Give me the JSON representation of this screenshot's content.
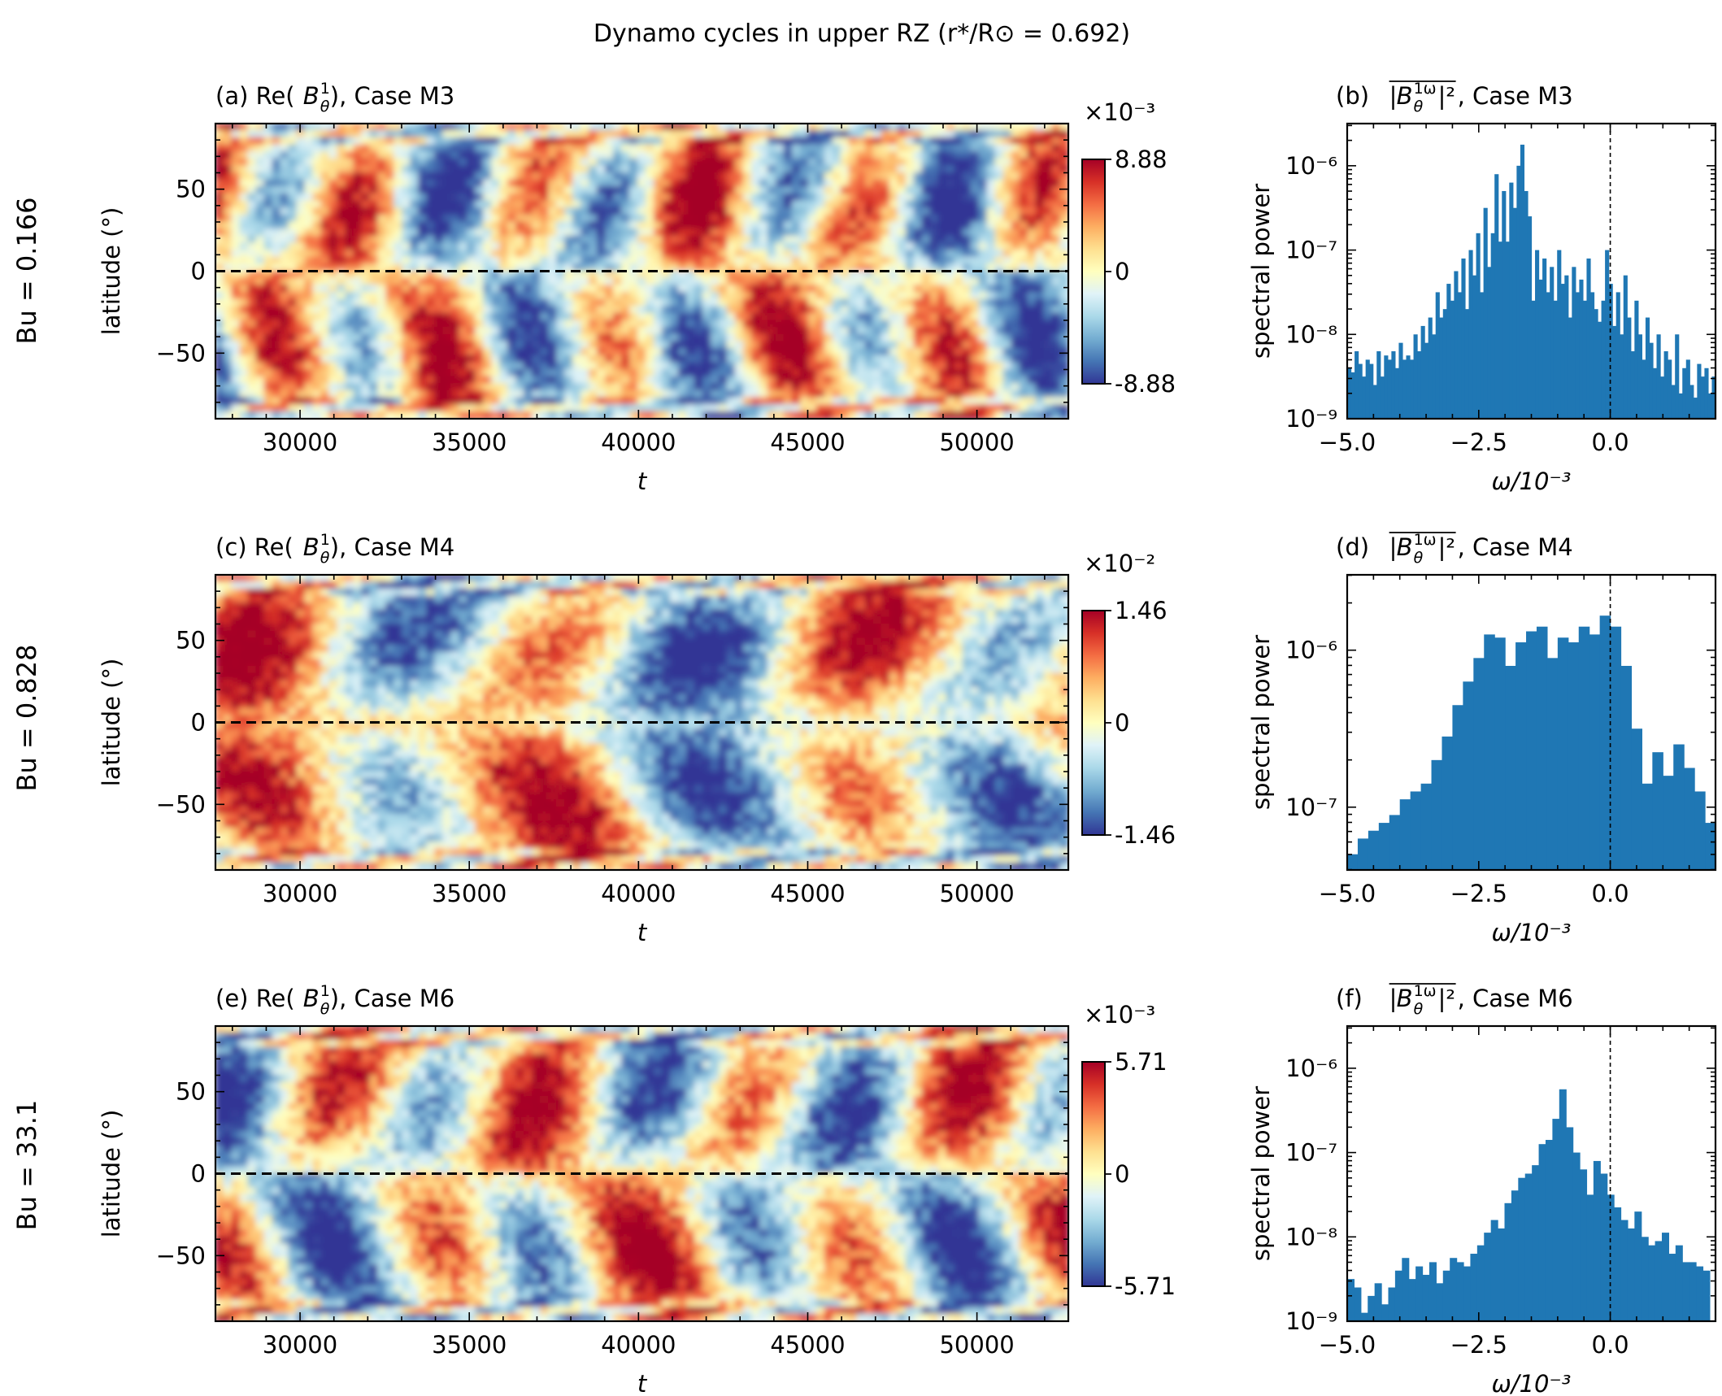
{
  "figure": {
    "title": "Dynamo cycles in upper RZ (r*/R⊙ = 0.692)"
  },
  "rows": [
    {
      "bu_label": "Bu = 0.166"
    },
    {
      "bu_label": "Bu = 0.828"
    },
    {
      "bu_label": "Bu = 33.1"
    }
  ],
  "colormap": [
    "#313695",
    "#4575b4",
    "#74add1",
    "#abd9e9",
    "#e0f3f8",
    "#ffffbf",
    "#fee090",
    "#fdae61",
    "#f46d43",
    "#d73027",
    "#a50026"
  ],
  "bar_color": "#1f77b4",
  "chart_data": [
    {
      "type": "heatmap",
      "panel": "(a) Re(B_θ^1), Case M3",
      "title_main": "(a) Re(",
      "title_case": "), Case M3",
      "xlabel": "t",
      "ylabel": "latitude (°)",
      "xlim": [
        27500,
        52700
      ],
      "ylim": [
        -90,
        90
      ],
      "xticks": [
        30000,
        35000,
        40000,
        45000,
        50000
      ],
      "yticks": [
        50,
        0,
        -50
      ],
      "ytick_labels": [
        "50",
        "0",
        "−50"
      ],
      "colorbar": {
        "exponent": "×10⁻³",
        "max": "8.88",
        "mid": "0",
        "min": "-8.88"
      },
      "cycle_period": 5000,
      "phase_shift": 0,
      "hemisphere_antisymmetric": true
    },
    {
      "type": "bar",
      "panel": "(b) |B_θ^1ω|² avg, Case M3",
      "title_main": "(b) ",
      "title_case": ", Case M3",
      "xlabel": "ω/10⁻³",
      "ylabel": "spectral power",
      "xlim": [
        -5.0,
        2.0
      ],
      "ylog_range": [
        -9,
        -5.5
      ],
      "xticks": [
        -5.0,
        -2.5,
        0.0
      ],
      "xtick_labels": [
        "−5.0",
        "−2.5",
        "0.0"
      ],
      "yticks": [
        -6,
        -7,
        -8,
        -9
      ],
      "ytick_labels": [
        "10⁻⁶",
        "10⁻⁷",
        "10⁻⁸",
        "10⁻⁹"
      ],
      "bin_width": 0.07,
      "x_start": -5.0,
      "log10_values": [
        -8.4,
        -8.45,
        -8.2,
        -8.35,
        -8.5,
        -8.3,
        -8.35,
        -8.6,
        -8.2,
        -8.5,
        -8.25,
        -8.3,
        -8.2,
        -8.4,
        -8.1,
        -8.3,
        -8.25,
        -8.3,
        -8.0,
        -8.2,
        -7.9,
        -8.1,
        -7.8,
        -8.0,
        -7.5,
        -7.8,
        -7.7,
        -7.4,
        -7.6,
        -7.25,
        -7.5,
        -7.1,
        -7.7,
        -7.0,
        -7.3,
        -6.8,
        -7.5,
        -6.5,
        -7.2,
        -6.8,
        -6.1,
        -6.9,
        -6.3,
        -6.9,
        -6.2,
        -6.5,
        -6.0,
        -5.75,
        -6.3,
        -6.6,
        -7.6,
        -7.0,
        -7.35,
        -7.1,
        -7.5,
        -7.2,
        -7.6,
        -7.0,
        -7.4,
        -7.3,
        -7.8,
        -7.2,
        -7.5,
        -7.35,
        -7.6,
        -7.1,
        -7.5,
        -7.7,
        -7.85,
        -7.6,
        -7.0,
        -7.4,
        -7.9,
        -7.5,
        -8.0,
        -7.3,
        -7.8,
        -8.2,
        -7.6,
        -8.0,
        -8.3,
        -7.8,
        -8.1,
        -8.4,
        -8.0,
        -8.5,
        -8.2,
        -8.3,
        -8.6,
        -8.0,
        -8.7,
        -8.4,
        -8.3,
        -8.6,
        -8.75,
        -8.35,
        -8.5,
        -8.4,
        -8.7,
        -8.5
      ]
    },
    {
      "type": "heatmap",
      "panel": "(c) Re(B_θ^1), Case M4",
      "title_main": "(c) Re(",
      "title_case": "), Case M4",
      "xlabel": "t",
      "ylabel": "latitude (°)",
      "xlim": [
        27500,
        52700
      ],
      "ylim": [
        -90,
        90
      ],
      "xticks": [
        30000,
        35000,
        40000,
        45000,
        50000
      ],
      "yticks": [
        50,
        0,
        -50
      ],
      "ytick_labels": [
        "50",
        "0",
        "−50"
      ],
      "colorbar": {
        "exponent": "×10⁻²",
        "max": "1.46",
        "mid": "0",
        "min": "-1.46"
      },
      "cycle_period": 9000,
      "phase_shift": 1.2,
      "hemisphere_antisymmetric": false
    },
    {
      "type": "bar",
      "panel": "(d) |B_θ^1ω|² avg, Case M4",
      "title_main": "(d) ",
      "title_case": ", Case M4",
      "xlabel": "ω/10⁻³",
      "ylabel": "spectral power",
      "xlim": [
        -5.0,
        2.0
      ],
      "ylog_range": [
        -7.4,
        -5.52
      ],
      "xticks": [
        -5.0,
        -2.5,
        0.0
      ],
      "xtick_labels": [
        "−5.0",
        "−2.5",
        "0.0"
      ],
      "yticks": [
        -6,
        -7
      ],
      "ytick_labels": [
        "10⁻⁶",
        "10⁻⁷"
      ],
      "bin_width": 0.2,
      "x_start": -5.0,
      "log10_values": [
        -7.3,
        -7.2,
        -7.15,
        -7.1,
        -7.05,
        -6.95,
        -6.9,
        -6.85,
        -6.7,
        -6.55,
        -6.35,
        -6.2,
        -6.05,
        -5.9,
        -5.92,
        -6.1,
        -5.95,
        -5.88,
        -5.85,
        -6.05,
        -5.92,
        -5.95,
        -5.85,
        -5.9,
        -5.78,
        -5.85,
        -6.1,
        -6.5,
        -6.85,
        -6.65,
        -6.8,
        -6.6,
        -6.75,
        -6.9,
        -7.1,
        -7.1,
        -7.15
      ]
    },
    {
      "type": "heatmap",
      "panel": "(e) Re(B_θ^1), Case M6",
      "title_main": "(e) Re(",
      "title_case": "), Case M6",
      "xlabel": "t",
      "ylabel": "latitude (°)",
      "xlim": [
        27500,
        52700
      ],
      "ylim": [
        -90,
        90
      ],
      "xticks": [
        30000,
        35000,
        40000,
        45000,
        50000
      ],
      "yticks": [
        50,
        0,
        -50
      ],
      "ytick_labels": [
        "50",
        "0",
        "−50"
      ],
      "colorbar": {
        "exponent": "×10⁻³",
        "max": "5.71",
        "mid": "0",
        "min": "-5.71"
      },
      "cycle_period": 6200,
      "phase_shift": 2.3,
      "hemisphere_antisymmetric": true
    },
    {
      "type": "bar",
      "panel": "(f) |B_θ^1ω|² avg, Case M6",
      "title_main": "(f) ",
      "title_case": ", Case M6",
      "xlabel": "ω/10⁻³",
      "ylabel": "spectral power",
      "xlim": [
        -5.0,
        2.0
      ],
      "ylog_range": [
        -9,
        -5.5
      ],
      "xticks": [
        -5.0,
        -2.5,
        0.0
      ],
      "xtick_labels": [
        "−5.0",
        "−2.5",
        "0.0"
      ],
      "yticks": [
        -6,
        -7,
        -8,
        -9
      ],
      "ytick_labels": [
        "10⁻⁶",
        "10⁻⁷",
        "10⁻⁸",
        "10⁻⁹"
      ],
      "bin_width": 0.13,
      "x_start": -5.0,
      "log10_values": [
        -8.5,
        -8.6,
        -8.9,
        -8.7,
        -8.55,
        -8.8,
        -8.6,
        -8.4,
        -8.25,
        -8.5,
        -8.35,
        -8.45,
        -8.3,
        -8.55,
        -8.4,
        -8.25,
        -8.3,
        -8.35,
        -8.2,
        -8.1,
        -7.95,
        -7.8,
        -7.9,
        -7.6,
        -7.45,
        -7.3,
        -7.25,
        -7.15,
        -6.9,
        -6.85,
        -6.6,
        -6.25,
        -6.7,
        -7.0,
        -7.2,
        -7.5,
        -7.1,
        -7.25,
        -7.5,
        -7.65,
        -7.8,
        -7.9,
        -7.7,
        -8.0,
        -8.1,
        -8.05,
        -7.95,
        -8.2,
        -8.1,
        -8.3,
        -8.3,
        -8.35,
        -8.4
      ]
    }
  ]
}
